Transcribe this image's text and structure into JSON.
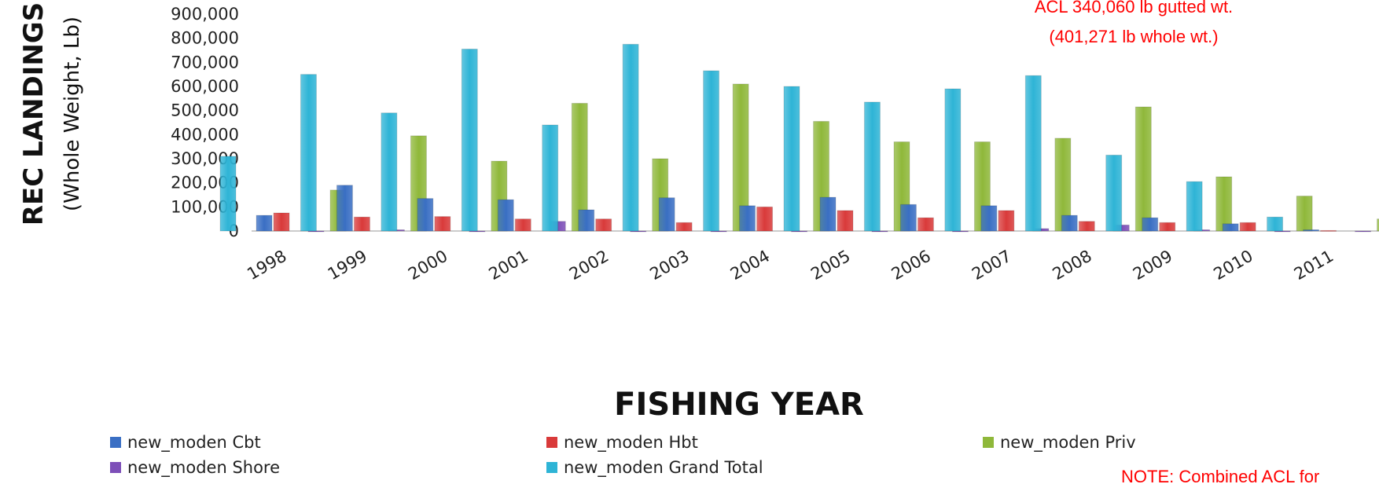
{
  "chart_data": {
    "type": "bar",
    "ylabel": "REC LANDINGS",
    "ylabel_sub": "(Whole Weight, Lb)",
    "xlabel": "FISHING YEAR",
    "ylim": [
      0,
      900000
    ],
    "yticks": [
      "0",
      "100,000",
      "200,000",
      "300,000",
      "400,000",
      "500,000",
      "600,000",
      "700,000",
      "800,000",
      "900,000"
    ],
    "categories": [
      "1998",
      "1999",
      "2000",
      "2001",
      "2002",
      "2003",
      "2004",
      "2005",
      "2006",
      "2007",
      "2008",
      "2009",
      "2010",
      "2011"
    ],
    "grid": false,
    "legend_position": "bottom",
    "series": [
      {
        "name": "new_moden Cbt",
        "color": "#3a6fc4",
        "values": [
          65000,
          190000,
          135000,
          130000,
          88000,
          138000,
          105000,
          140000,
          110000,
          105000,
          65000,
          55000,
          30000,
          5000
        ]
      },
      {
        "name": "new_moden Hbt",
        "color": "#d93a3a",
        "values": [
          75000,
          58000,
          60000,
          50000,
          50000,
          35000,
          100000,
          85000,
          55000,
          85000,
          40000,
          35000,
          35000,
          2000
        ]
      },
      {
        "name": "new_moden Priv",
        "color": "#8fb83a",
        "values": [
          170000,
          395000,
          290000,
          530000,
          300000,
          610000,
          455000,
          370000,
          370000,
          385000,
          515000,
          225000,
          145000,
          50000
        ]
      },
      {
        "name": "new_moden Shore",
        "color": "#7d4fb8",
        "values": [
          0,
          5000,
          0,
          40000,
          0,
          0,
          0,
          0,
          0,
          10000,
          25000,
          5000,
          0,
          0
        ]
      },
      {
        "name": "new_moden Grand Total",
        "color": "#2eb4d6",
        "values": [
          310000,
          650000,
          490000,
          755000,
          440000,
          775000,
          665000,
          600000,
          535000,
          590000,
          645000,
          315000,
          205000,
          58000
        ]
      }
    ],
    "annotations": {
      "acl_line1": "ACL 340,060 lb gutted wt.",
      "acl_line2": "(401,271 lb whole wt.)",
      "note": "NOTE: Combined ACL for"
    }
  }
}
